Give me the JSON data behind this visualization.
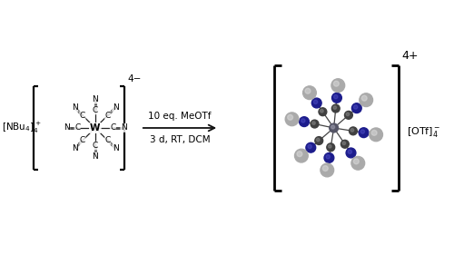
{
  "background_color": "#ffffff",
  "left_cation": "[NBu₄]⁴⁺",
  "bracket_charge_left": "4−",
  "reaction_line1": "10 eq. MeOTf",
  "reaction_line2": "3 d, RT, DCM",
  "right_anion": "[OTf]₄⁻",
  "bracket_charge_right": "4+",
  "bond_color": "#222222",
  "c_dark": "#333333",
  "n_dark": "#111111",
  "w_gray": "#888888",
  "atom_C_3d": "#404040",
  "atom_N_3d": "#1c1c8c",
  "atom_Me_3d": "#aaaaaa",
  "atom_W_3d": "#555566",
  "arrow_color": "#111111",
  "font_size_label": 8,
  "font_size_text": 7.5,
  "font_size_charge": 8
}
